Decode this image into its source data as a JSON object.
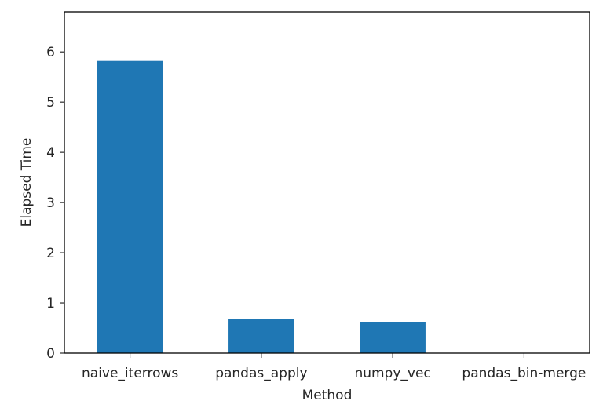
{
  "chart_data": {
    "type": "bar",
    "categories": [
      "naive_iterrows",
      "pandas_apply",
      "numpy_vec",
      "pandas_bin-merge"
    ],
    "values": [
      5.82,
      0.68,
      0.62,
      0.0
    ],
    "title": "",
    "xlabel": "Method",
    "ylabel": "Elapsed Time",
    "ylim": [
      0,
      6.8
    ],
    "yticks": [
      "0",
      "1",
      "2",
      "3",
      "4",
      "5",
      "6"
    ],
    "grid": false,
    "legend": "none",
    "bar_color": "#1f77b4"
  }
}
